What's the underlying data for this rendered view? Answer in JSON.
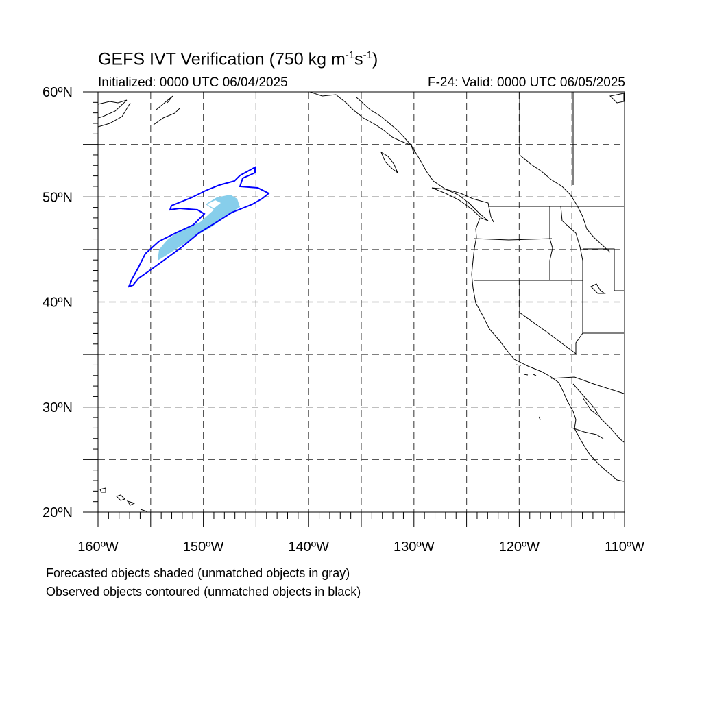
{
  "title": {
    "main": "GEFS IVT Verification (750 kg m",
    "exp1": "-1",
    "mid": "s",
    "exp2": "-1",
    "close": ")"
  },
  "initialized": "Initialized: 0000 UTC 06/04/2025",
  "valid": "F-24: Valid: 0000 UTC 06/05/2025",
  "map": {
    "lon_range": [
      -160,
      -110
    ],
    "lat_range": [
      20,
      60
    ],
    "grid": "on",
    "lat_labels": [
      "20ºN",
      "30ºN",
      "40ºN",
      "50ºN",
      "60ºN"
    ],
    "lon_labels": [
      "160ºW",
      "150ºW",
      "140ºW",
      "130ºW",
      "120ºW",
      "110ºW"
    ],
    "forecast_fill_color": "#87ceeb",
    "observed_contour_color": "#0000ff"
  },
  "notes": [
    "Forecasted objects shaded (unmatched objects in gray)",
    "Observed objects contoured (unmatched objects in black)"
  ]
}
